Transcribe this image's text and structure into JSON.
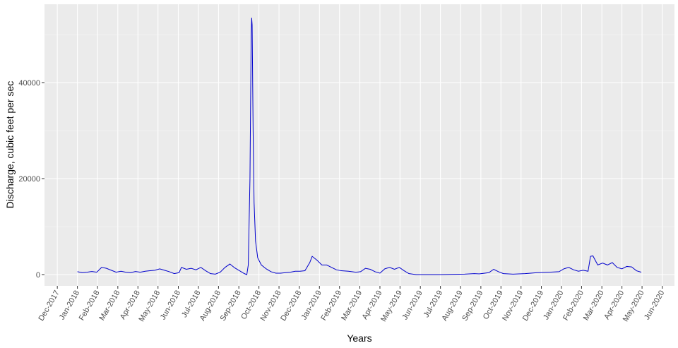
{
  "chart_data": {
    "type": "line",
    "xlabel": "Years",
    "ylabel": "Discharge, cubic feet per sec",
    "color": "#0000cd",
    "grid": true,
    "xlim": [
      2017.864,
      2020.467
    ],
    "ylim": [
      -2353,
      56324
    ],
    "yticks": [
      0,
      20000,
      40000
    ],
    "y_minor_gridlines": [
      10000,
      30000,
      50000
    ],
    "xticks": [
      {
        "value": 2017.917,
        "label": "Dec-2017"
      },
      {
        "value": 2018,
        "label": "Jan-2018"
      },
      {
        "value": 2018.083,
        "label": "Feb-2018"
      },
      {
        "value": 2018.167,
        "label": "Mar-2018"
      },
      {
        "value": 2018.25,
        "label": "Apr-2018"
      },
      {
        "value": 2018.333,
        "label": "May-2018"
      },
      {
        "value": 2018.417,
        "label": "Jun-2018"
      },
      {
        "value": 2018.5,
        "label": "Jul-2018"
      },
      {
        "value": 2018.583,
        "label": "Aug-2018"
      },
      {
        "value": 2018.667,
        "label": "Sep-2018"
      },
      {
        "value": 2018.75,
        "label": "Oct-2018"
      },
      {
        "value": 2018.833,
        "label": "Nov-2018"
      },
      {
        "value": 2018.917,
        "label": "Dec-2018"
      },
      {
        "value": 2019,
        "label": "Jan-2019"
      },
      {
        "value": 2019.083,
        "label": "Feb-2019"
      },
      {
        "value": 2019.167,
        "label": "Mar-2019"
      },
      {
        "value": 2019.25,
        "label": "Apr-2019"
      },
      {
        "value": 2019.333,
        "label": "May-2019"
      },
      {
        "value": 2019.417,
        "label": "Jun-2019"
      },
      {
        "value": 2019.5,
        "label": "Jul-2019"
      },
      {
        "value": 2019.583,
        "label": "Aug-2019"
      },
      {
        "value": 2019.667,
        "label": "Sep-2019"
      },
      {
        "value": 2019.75,
        "label": "Oct-2019"
      },
      {
        "value": 2019.833,
        "label": "Nov-2019"
      },
      {
        "value": 2019.917,
        "label": "Dec-2019"
      },
      {
        "value": 2020,
        "label": "Jan-2020"
      },
      {
        "value": 2020.083,
        "label": "Feb-2020"
      },
      {
        "value": 2020.167,
        "label": "Mar-2020"
      },
      {
        "value": 2020.25,
        "label": "Apr-2020"
      },
      {
        "value": 2020.333,
        "label": "May-2020"
      },
      {
        "value": 2020.417,
        "label": "Jun-2020"
      }
    ],
    "x": [
      2018.0,
      2018.02,
      2018.04,
      2018.06,
      2018.08,
      2018.1,
      2018.12,
      2018.14,
      2018.16,
      2018.18,
      2018.2,
      2018.22,
      2018.24,
      2018.26,
      2018.28,
      2018.3,
      2018.32,
      2018.34,
      2018.36,
      2018.38,
      2018.4,
      2018.42,
      2018.43,
      2018.45,
      2018.47,
      2018.49,
      2018.51,
      2018.53,
      2018.55,
      2018.57,
      2018.59,
      2018.61,
      2018.63,
      2018.65,
      2018.67,
      2018.69,
      2018.7,
      2018.706,
      2018.713,
      2018.718,
      2018.72,
      2018.722,
      2018.726,
      2018.73,
      2018.736,
      2018.745,
      2018.76,
      2018.78,
      2018.8,
      2018.82,
      2018.84,
      2018.86,
      2018.88,
      2018.9,
      2018.92,
      2018.94,
      2018.96,
      2018.97,
      2018.99,
      2019.01,
      2019.03,
      2019.05,
      2019.07,
      2019.09,
      2019.12,
      2019.15,
      2019.17,
      2019.19,
      2019.21,
      2019.23,
      2019.25,
      2019.27,
      2019.29,
      2019.31,
      2019.33,
      2019.35,
      2019.37,
      2019.4,
      2019.5,
      2019.6,
      2019.64,
      2019.66,
      2019.7,
      2019.72,
      2019.74,
      2019.76,
      2019.8,
      2019.85,
      2019.9,
      2019.95,
      2019.99,
      2020.01,
      2020.03,
      2020.05,
      2020.07,
      2020.09,
      2020.11,
      2020.12,
      2020.13,
      2020.15,
      2020.17,
      2020.19,
      2020.21,
      2020.23,
      2020.25,
      2020.27,
      2020.29,
      2020.31,
      2020.33
    ],
    "values": [
      600,
      400,
      500,
      650,
      500,
      1500,
      1300,
      900,
      500,
      700,
      500,
      400,
      650,
      500,
      700,
      800,
      900,
      1200,
      900,
      600,
      200,
      400,
      1500,
      1100,
      1300,
      1000,
      1500,
      800,
      200,
      100,
      500,
      1500,
      2200,
      1400,
      800,
      200,
      0,
      2000,
      20000,
      50000,
      53500,
      52000,
      30000,
      15000,
      7000,
      3500,
      2000,
      1200,
      600,
      300,
      300,
      400,
      500,
      700,
      700,
      800,
      2500,
      3800,
      3000,
      2000,
      2000,
      1500,
      1000,
      800,
      700,
      500,
      600,
      1300,
      1100,
      600,
      300,
      1200,
      1500,
      1100,
      1500,
      800,
      200,
      0,
      0,
      100,
      200,
      150,
      400,
      1100,
      600,
      200,
      100,
      200,
      400,
      500,
      600,
      1200,
      1500,
      1000,
      700,
      900,
      700,
      3800,
      3900,
      2000,
      2400,
      2000,
      2500,
      1500,
      1200,
      1700,
      1600,
      800,
      500
    ]
  }
}
